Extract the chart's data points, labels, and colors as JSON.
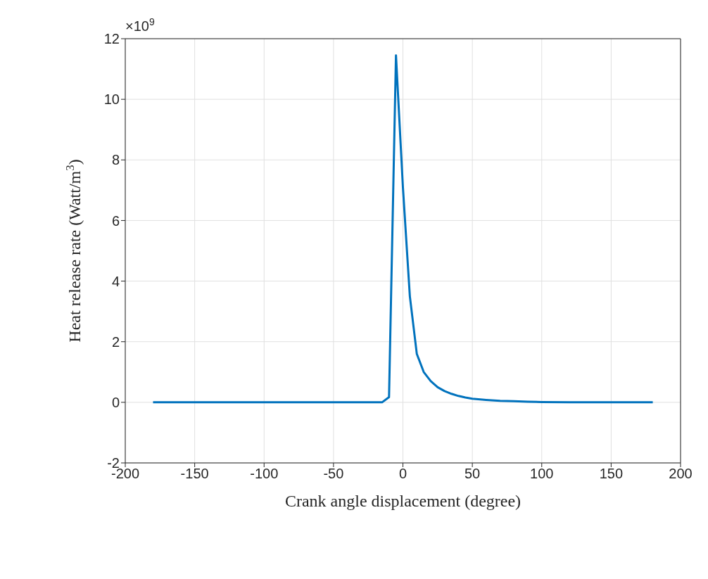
{
  "chart_data": {
    "type": "line",
    "xlabel": "Crank angle displacement (degree)",
    "ylabel": "Heat release rate (Watt/m$^{3}$)",
    "annotations": [
      "×10$^{9}$"
    ],
    "x": [
      -180,
      -150,
      -100,
      -50,
      -15,
      -10,
      -5,
      0,
      5,
      10,
      15,
      20,
      25,
      30,
      35,
      40,
      45,
      50,
      60,
      70,
      80,
      90,
      100,
      120,
      150,
      180
    ],
    "series": [
      {
        "color": "#0072bd",
        "values": [
          0,
          0,
          0,
          0,
          0,
          0.17,
          11.45,
          7.1,
          3.5,
          1.6,
          1.0,
          0.7,
          0.5,
          0.37,
          0.28,
          0.21,
          0.16,
          0.12,
          0.08,
          0.05,
          0.04,
          0.02,
          0.01,
          0,
          0,
          0
        ]
      }
    ],
    "xlim": [
      -200,
      200
    ],
    "xticks": [
      -200,
      -150,
      -100,
      -50,
      0,
      50,
      100,
      150,
      200
    ],
    "ylim": [
      -2,
      12
    ],
    "yticks": [
      -2,
      0,
      2,
      4,
      6,
      8,
      10,
      12
    ],
    "grid": true,
    "marker": "none",
    "line_style": "solid"
  }
}
